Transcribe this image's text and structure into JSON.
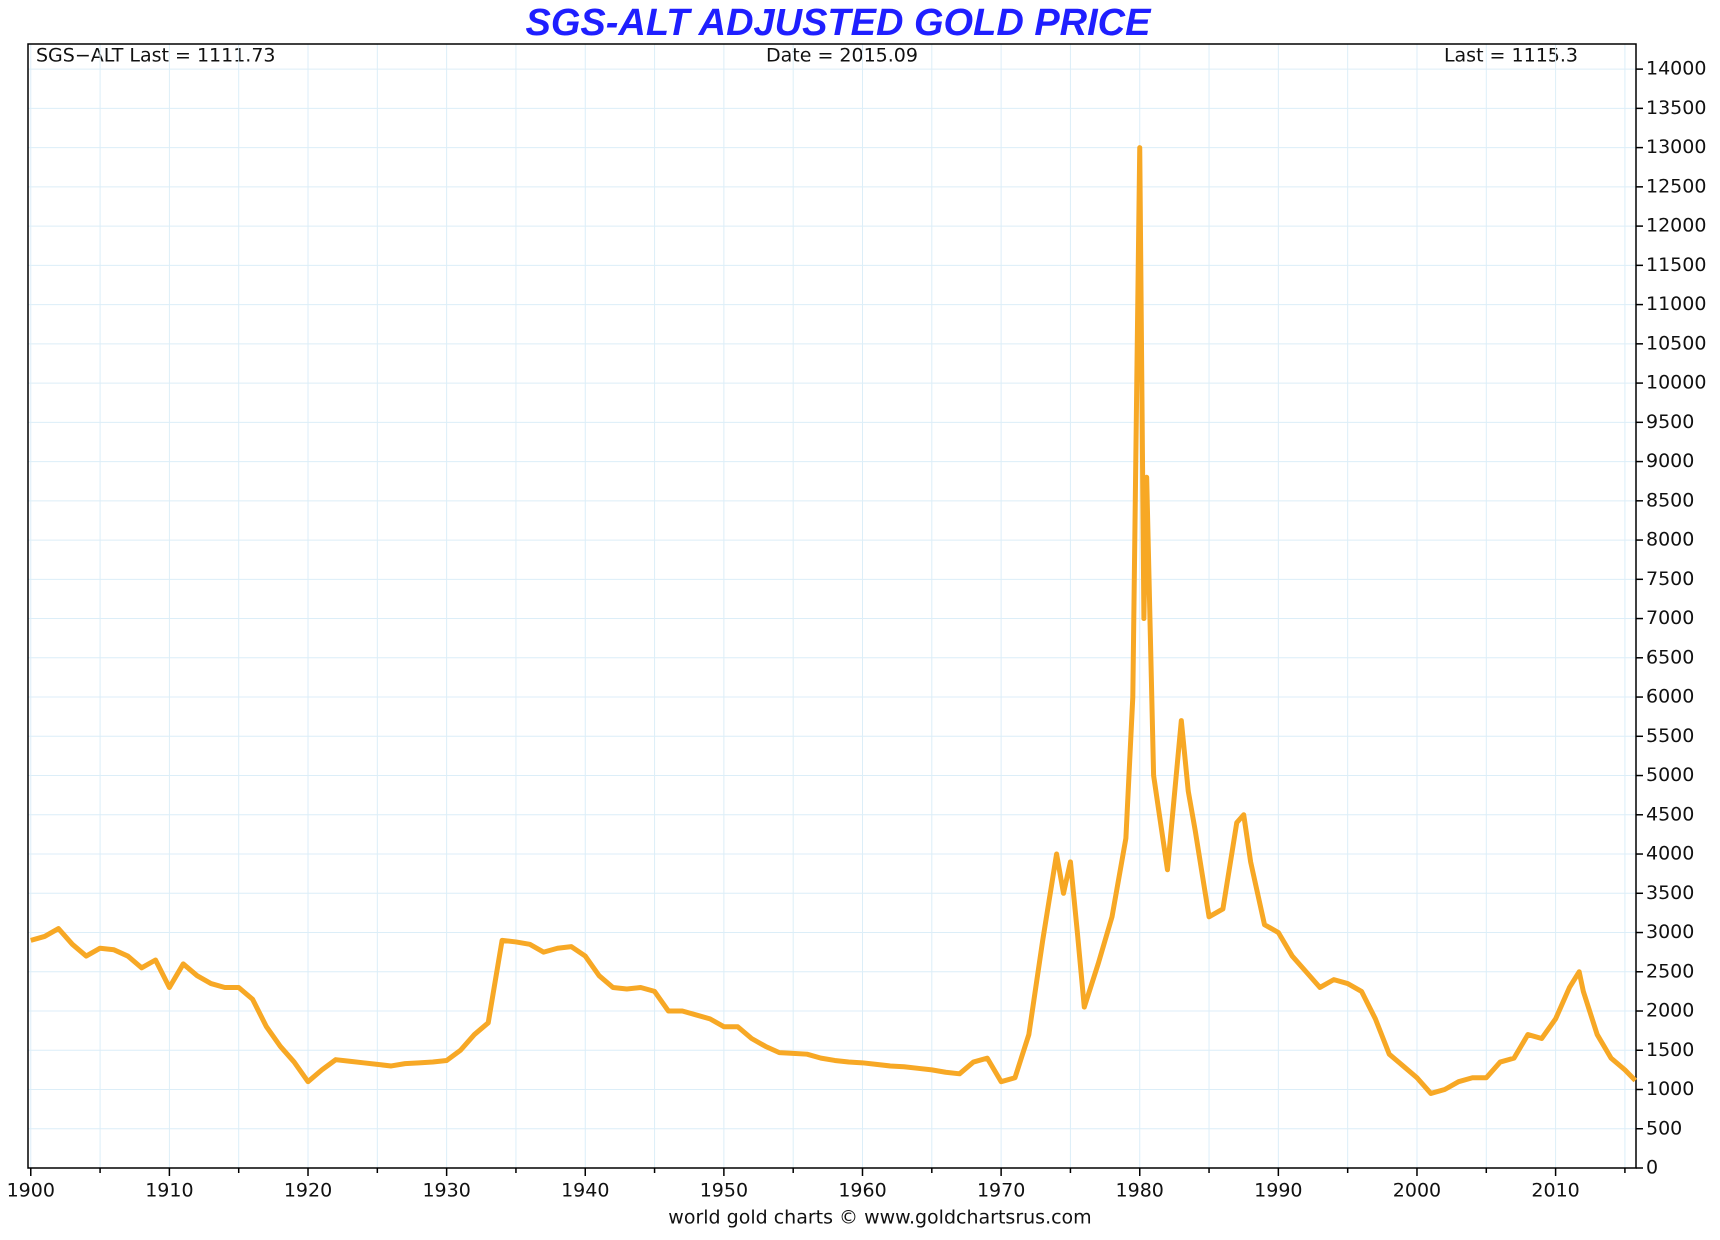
{
  "chart_data": {
    "type": "line",
    "title": "SGS-ALT ADJUSTED  GOLD PRICE",
    "annotations": [
      "SGS−ALT Last = 1111.73",
      "Date = 2015.09",
      "Last = 1115.3"
    ],
    "footer": "world gold charts © www.goldchartsrus.com",
    "xlim": [
      1899.8,
      2015.8
    ],
    "ylim": [
      0,
      14320
    ],
    "xticks": [
      1900,
      1910,
      1920,
      1930,
      1940,
      1950,
      1960,
      1970,
      1980,
      1990,
      2000,
      2010
    ],
    "yticks": [
      0,
      500,
      1000,
      1500,
      2000,
      2500,
      3000,
      3500,
      4000,
      4500,
      5000,
      5500,
      6000,
      6500,
      7000,
      7500,
      8000,
      8500,
      9000,
      9500,
      10000,
      10500,
      11000,
      11500,
      12000,
      12500,
      13000,
      13500,
      14000
    ],
    "grid": true,
    "y_axis_side": "right",
    "series": [
      {
        "name": "SGS-ALT",
        "color": "#f7a825",
        "x": [
          1900,
          1901,
          1902,
          1903,
          1904,
          1905,
          1906,
          1907,
          1908,
          1909,
          1910,
          1911,
          1912,
          1913,
          1914,
          1915,
          1916,
          1917,
          1918,
          1919,
          1920,
          1921,
          1922,
          1923,
          1924,
          1925,
          1926,
          1927,
          1928,
          1929,
          1930,
          1931,
          1932,
          1933,
          1934,
          1935,
          1936,
          1937,
          1938,
          1939,
          1940,
          1941,
          1942,
          1943,
          1944,
          1945,
          1946,
          1947,
          1948,
          1949,
          1950,
          1951,
          1952,
          1953,
          1954,
          1955,
          1956,
          1957,
          1958,
          1959,
          1960,
          1961,
          1962,
          1963,
          1964,
          1965,
          1966,
          1967,
          1968,
          1969,
          1970,
          1971,
          1972,
          1973,
          1974,
          1974.5,
          1975,
          1975.5,
          1976,
          1977,
          1978,
          1979,
          1979.5,
          1980,
          1980.3,
          1980.5,
          1981,
          1982,
          1983,
          1983.5,
          1984,
          1985,
          1986,
          1987,
          1987.5,
          1988,
          1989,
          1990,
          1991,
          1992,
          1993,
          1994,
          1995,
          1996,
          1997,
          1998,
          1999,
          2000,
          2001,
          2002,
          2003,
          2004,
          2005,
          2006,
          2007,
          2008,
          2009,
          2010,
          2011,
          2011.7,
          2012,
          2013,
          2014,
          2015,
          2015.75
        ],
        "values": [
          2900,
          2950,
          3050,
          2850,
          2700,
          2800,
          2780,
          2700,
          2550,
          2650,
          2300,
          2600,
          2450,
          2350,
          2300,
          2300,
          2150,
          1800,
          1550,
          1350,
          1100,
          1250,
          1380,
          1360,
          1340,
          1320,
          1300,
          1330,
          1340,
          1350,
          1370,
          1500,
          1700,
          1850,
          2900,
          2880,
          2850,
          2750,
          2800,
          2820,
          2700,
          2450,
          2300,
          2280,
          2300,
          2250,
          2000,
          2000,
          1950,
          1900,
          1800,
          1800,
          1650,
          1550,
          1470,
          1460,
          1450,
          1400,
          1370,
          1350,
          1340,
          1320,
          1300,
          1290,
          1270,
          1250,
          1220,
          1200,
          1350,
          1400,
          1100,
          1150,
          1700,
          2900,
          4000,
          3500,
          3900,
          3000,
          2050,
          2600,
          3200,
          4200,
          6000,
          13000,
          7000,
          8800,
          5000,
          3800,
          5700,
          4800,
          4300,
          3200,
          3300,
          4400,
          4500,
          3900,
          3100,
          3000,
          2700,
          2500,
          2300,
          2400,
          2350,
          2250,
          1900,
          1450,
          1300,
          1150,
          950,
          1000,
          1100,
          1150,
          1150,
          1350,
          1400,
          1700,
          1650,
          1900,
          2300,
          2500,
          2250,
          1700,
          1400,
          1250,
          1115
        ]
      }
    ]
  }
}
